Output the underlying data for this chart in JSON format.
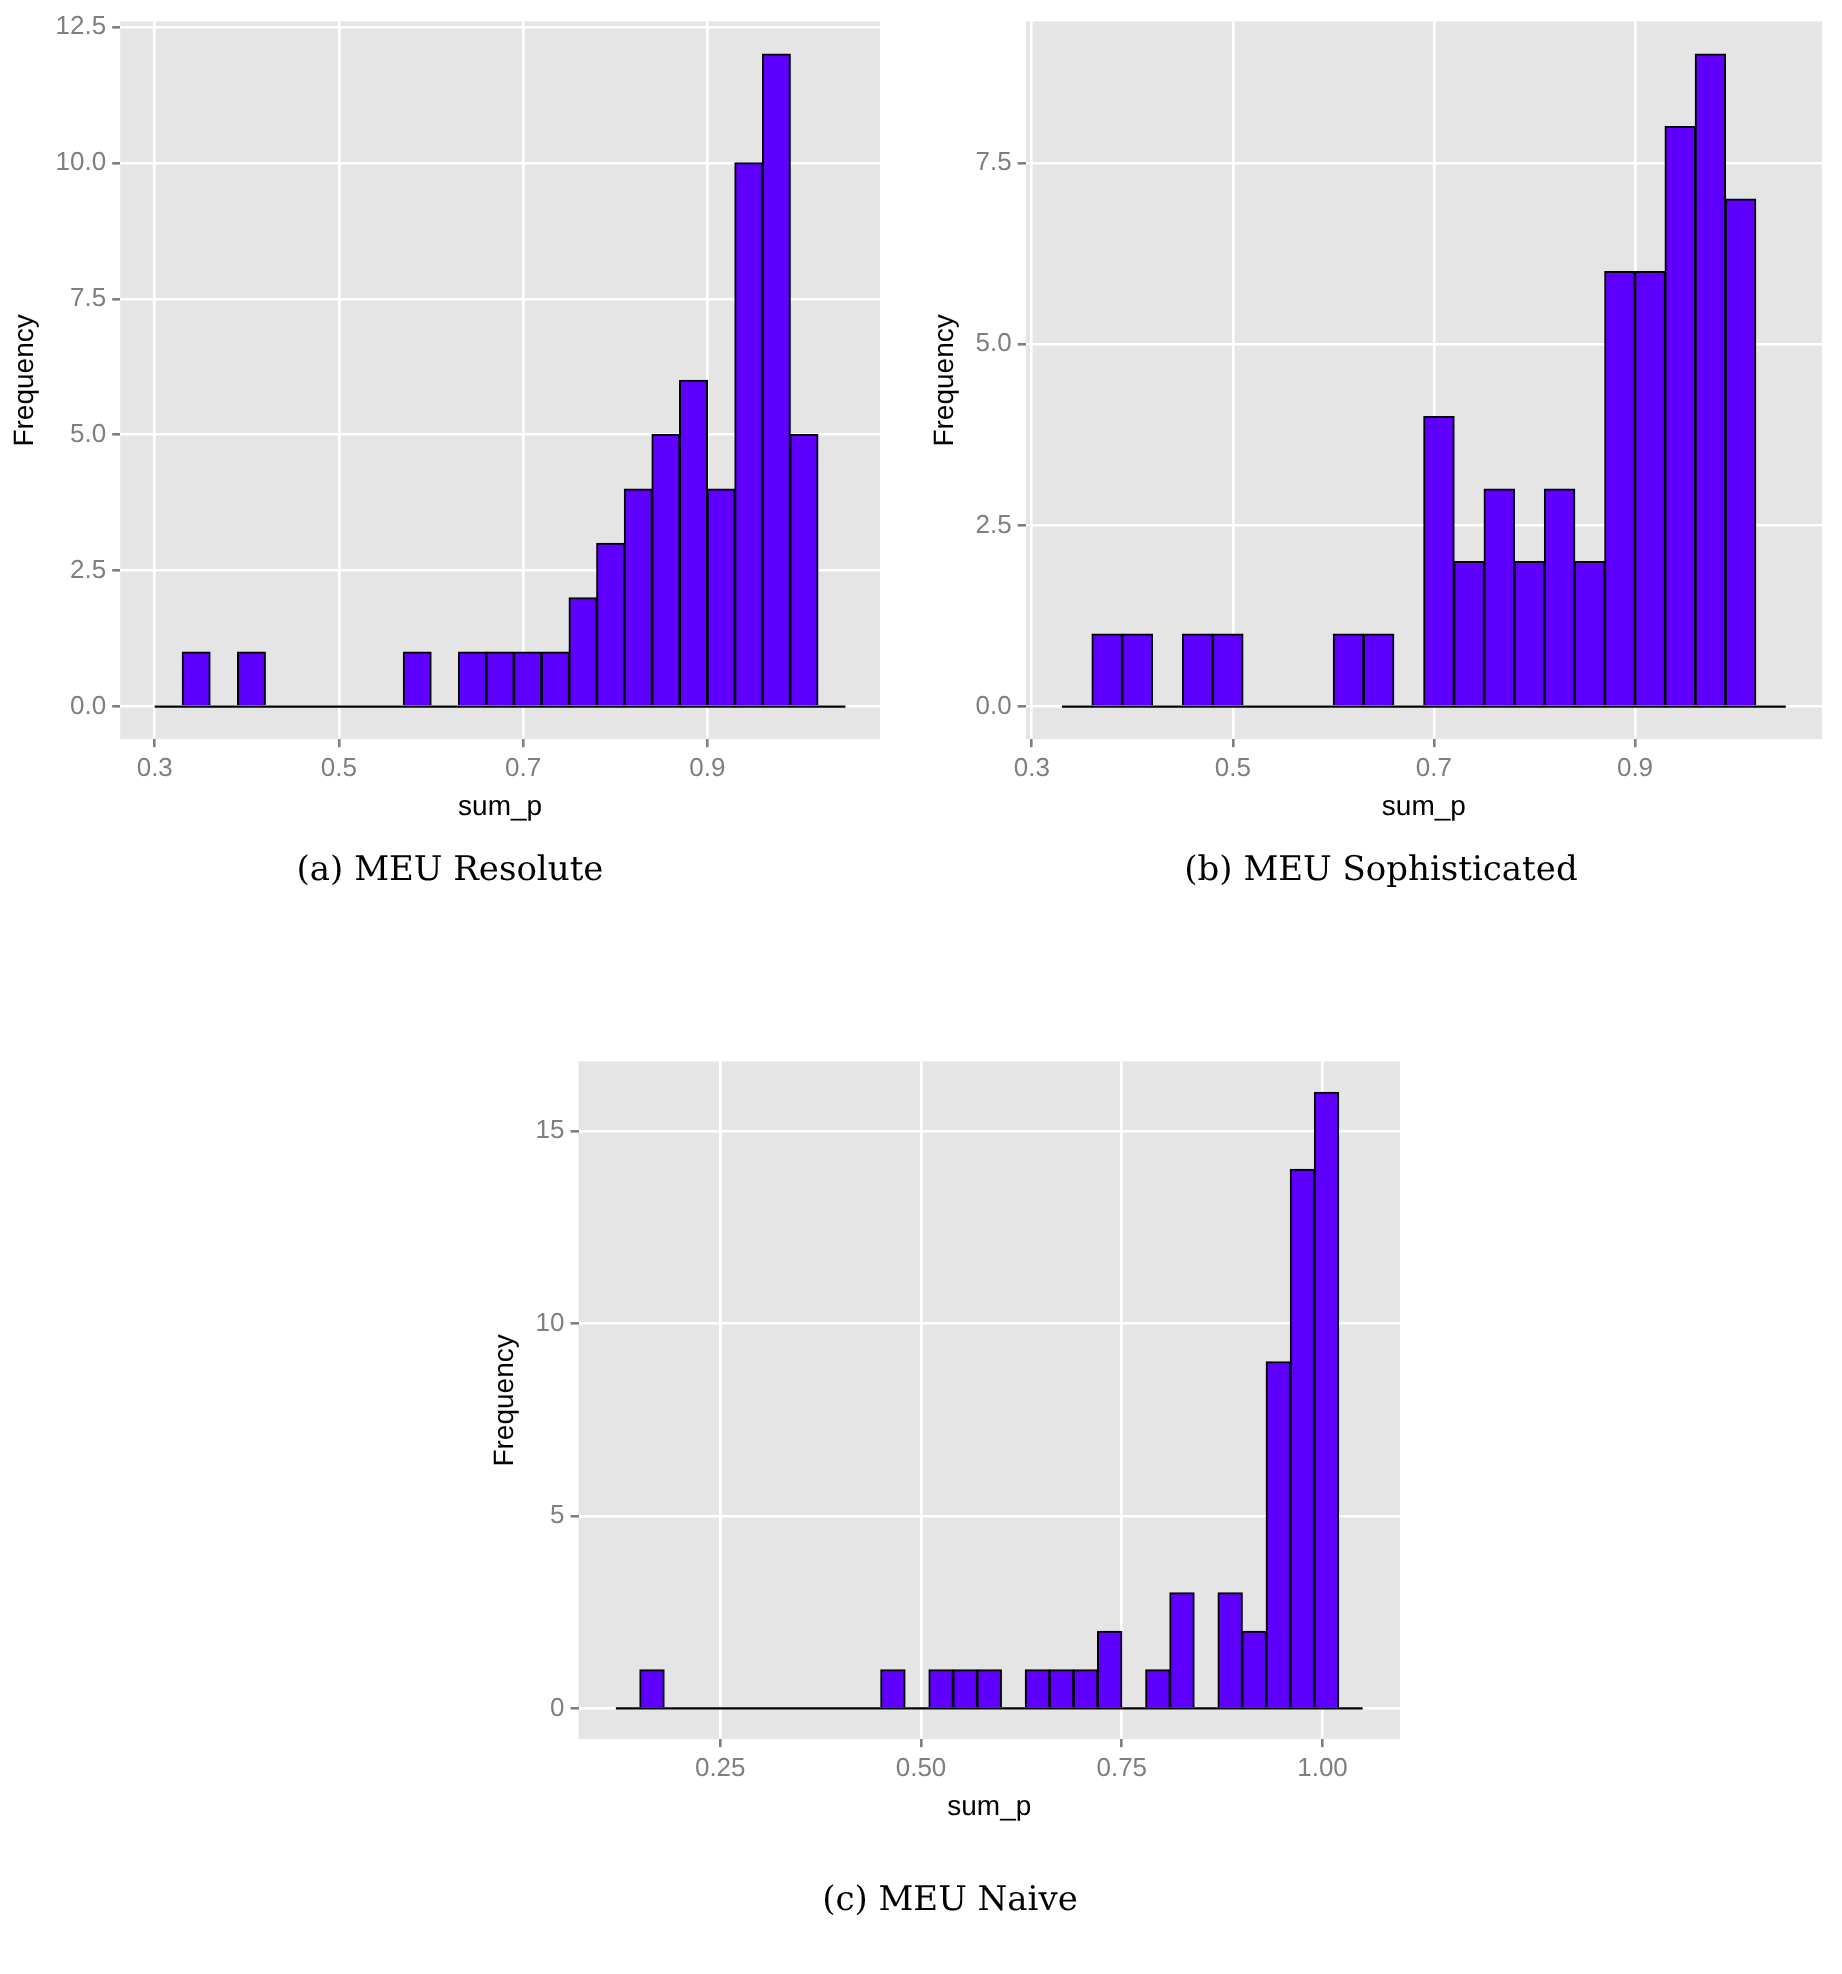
{
  "chart_data": [
    {
      "type": "histogram",
      "xlabel": "sum_p",
      "ylabel": "Frequency",
      "color": "#5f00ff",
      "grid": true,
      "annotations": [
        "(a) MEU Resolute"
      ],
      "bins": [
        0.3,
        0.33,
        0.36,
        0.39,
        0.42,
        0.45,
        0.48,
        0.51,
        0.54,
        0.57,
        0.6,
        0.63,
        0.66,
        0.69,
        0.72,
        0.75,
        0.78,
        0.81,
        0.84,
        0.87,
        0.9,
        0.93,
        0.96,
        0.99,
        1.02,
        1.05
      ],
      "values": [
        0,
        1,
        0,
        1,
        0,
        0,
        0,
        0,
        0,
        1,
        0,
        1,
        1,
        1,
        1,
        2,
        3,
        4,
        5,
        6,
        4,
        10,
        12,
        5,
        0
      ],
      "xlim": [
        0.2625,
        1.0875
      ],
      "xticks": [
        0.3,
        0.5,
        0.7,
        0.9
      ],
      "ylim": [
        -0.6,
        12.6
      ],
      "yticks": [
        {
          "value": 0,
          "label": "0.0"
        },
        {
          "value": 2.5,
          "label": "2.5"
        },
        {
          "value": 5,
          "label": "5.0"
        },
        {
          "value": 7.5,
          "label": "7.5"
        },
        {
          "value": 10,
          "label": "10.0"
        },
        {
          "value": 12.5,
          "label": "12.5"
        }
      ]
    },
    {
      "type": "histogram",
      "xlabel": "sum_p",
      "ylabel": "Frequency",
      "color": "#5f00ff",
      "grid": true,
      "annotations": [
        "(b) MEU Sophisticated"
      ],
      "bins": [
        0.33,
        0.36,
        0.39,
        0.42,
        0.45,
        0.48,
        0.51,
        0.54,
        0.57,
        0.6,
        0.63,
        0.66,
        0.69,
        0.72,
        0.75,
        0.78,
        0.81,
        0.84,
        0.87,
        0.9,
        0.93,
        0.96,
        0.99,
        1.02,
        1.05
      ],
      "values": [
        0,
        1,
        1,
        0,
        1,
        1,
        0,
        0,
        0,
        1,
        1,
        0,
        4,
        2,
        3,
        2,
        3,
        2,
        6,
        6,
        8,
        9,
        7,
        0
      ],
      "xlim": [
        0.294,
        1.086
      ],
      "xticks": [
        0.3,
        0.5,
        0.7,
        0.9
      ],
      "ylim": [
        -0.45,
        9.45
      ],
      "yticks": [
        {
          "value": 0,
          "label": "0.0"
        },
        {
          "value": 2.5,
          "label": "2.5"
        },
        {
          "value": 5,
          "label": "5.0"
        },
        {
          "value": 7.5,
          "label": "7.5"
        }
      ]
    },
    {
      "type": "histogram",
      "xlabel": "sum_p",
      "ylabel": "Frequency",
      "color": "#5f00ff",
      "grid": true,
      "annotations": [
        "(c) MEU Naive"
      ],
      "bins": [
        0.12,
        0.15,
        0.18,
        0.21,
        0.24,
        0.27,
        0.3,
        0.33,
        0.36,
        0.39,
        0.42,
        0.45,
        0.48,
        0.51,
        0.54,
        0.57,
        0.6,
        0.63,
        0.66,
        0.69,
        0.72,
        0.75,
        0.78,
        0.81,
        0.84,
        0.87,
        0.9,
        0.93,
        0.96,
        0.99,
        1.02,
        1.05
      ],
      "values": [
        0,
        1,
        0,
        0,
        0,
        0,
        0,
        0,
        0,
        0,
        0,
        1,
        0,
        1,
        1,
        1,
        0,
        1,
        1,
        1,
        2,
        0,
        1,
        3,
        0,
        3,
        2,
        9,
        14,
        16,
        0
      ],
      "xlim": [
        0.0735,
        1.0965
      ],
      "xticks": [
        {
          "value": 0.25,
          "label": "0.25"
        },
        {
          "value": 0.5,
          "label": "0.50"
        },
        {
          "value": 0.75,
          "label": "0.75"
        },
        {
          "value": 1,
          "label": "1.00"
        }
      ],
      "ylim": [
        -0.8,
        16.8
      ],
      "yticks": [
        0,
        5,
        10,
        15
      ]
    }
  ]
}
